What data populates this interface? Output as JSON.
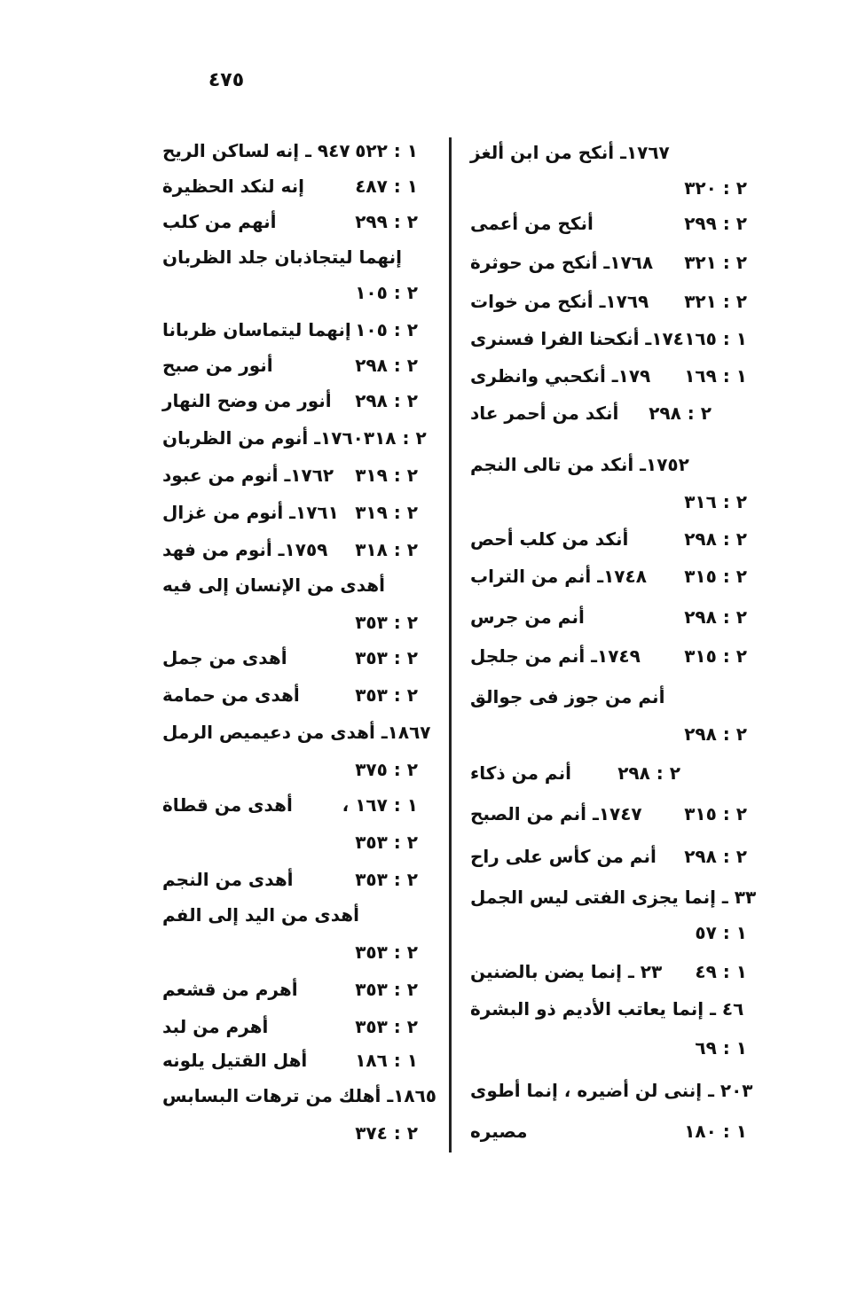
{
  "page_number": "٤٧٥",
  "right_column": [
    {
      "text": "١٧٦٧ـ أنكح من ابن ألغز",
      "ref": ""
    },
    {
      "text": "",
      "ref": "٢ : ٣٢٠"
    },
    {
      "text": "أنكح من أعمى",
      "ref": "٢ : ٢٩٩"
    },
    {
      "text": "١٧٦٨ـ أنكح من حوثرة",
      "ref": "٢ : ٣٢١"
    },
    {
      "text": "١٧٦٩ـ أنكح من خوات",
      "ref": "٢ : ٣٢١"
    },
    {
      "text": "١٧٤ـ أنكحنا الفرا فسنرى",
      "ref": "١ : ١٦٥"
    },
    {
      "text": "١٧٩ـ أنكحبي وانظرى",
      "ref": "١ : ١٦٩"
    },
    {
      "text": "أنكد من أحمر عاد",
      "ref": "٢ : ٢٩٨"
    },
    {
      "text": "١٧٥٢ـ أنكد من تالى النجم",
      "ref": ""
    },
    {
      "text": "",
      "ref": "٢ : ٣١٦"
    },
    {
      "text": "أنكد من كلب أحص",
      "ref": "٢ : ٢٩٨"
    },
    {
      "text": "١٧٤٨ـ أنم من التراب",
      "ref": "٢ : ٣١٥"
    },
    {
      "text": "أنم من جرس",
      "ref": "٢ : ٢٩٨"
    },
    {
      "text": "١٧٤٩ـ أنم من جلجل",
      "ref": "٢ : ٣١٥"
    },
    {
      "text": "أنم من جوز فى جوالق",
      "ref": ""
    },
    {
      "text": "",
      "ref": "٢ : ٢٩٨"
    },
    {
      "text": "أنم من ذكاء",
      "ref": "٢ : ٢٩٨"
    },
    {
      "text": "١٧٤٧ـ أنم من الصبح",
      "ref": "٢ : ٣١٥"
    },
    {
      "text": "أنم من كأس على راح",
      "ref": "٢ : ٢٩٨"
    },
    {
      "text": "٣٣ ـ إنما يجزى الفتى ليس الجمل",
      "ref": ""
    },
    {
      "text": "",
      "ref": "١ : ٥٧"
    },
    {
      "text": "٢٣ ـ إنما يضن بالضنين",
      "ref": "١ : ٤٩"
    },
    {
      "text": "٤٦ ـ إنما يعاتب الأديم ذو البشرة",
      "ref": ""
    },
    {
      "text": "",
      "ref": "١ : ٦٩"
    },
    {
      "text": "٢٠٣ ـ إننى لن أضيره ، إنما أطوى",
      "ref": ""
    },
    {
      "text": "مصيره",
      "ref": "١ : ١٨٠"
    }
  ],
  "left_column": [
    {
      "text": "٩٤٧ ـ إنه لساكن الريح",
      "ref": "١ : ٥٢٢"
    },
    {
      "text": "إنه لنكد الحظيرة",
      "ref": "١ : ٤٨٧"
    },
    {
      "text": "أنهم من كلب",
      "ref": "٢ : ٢٩٩"
    },
    {
      "text": "إنهما ليتجاذبان جلد الظربان",
      "ref": ""
    },
    {
      "text": "",
      "ref": "٢ : ١٠٥"
    },
    {
      "text": "إنهما ليتماسان ظربانا",
      "ref": "٢ : ١٠٥"
    },
    {
      "text": "أنور من صبح",
      "ref": "٢ : ٢٩٨"
    },
    {
      "text": "أنور من وضح النهار",
      "ref": "٢ : ٢٩٨"
    },
    {
      "text": "١٧٦٠ـ أنوم من الظربان",
      "ref": "٢ : ٣١٨"
    },
    {
      "text": "١٧٦٢ـ أنوم من عبود",
      "ref": "٢ : ٣١٩"
    },
    {
      "text": "١٧٦١ـ أنوم من غزال",
      "ref": "٢ : ٣١٩"
    },
    {
      "text": "١٧٥٩ـ أنوم من فهد",
      "ref": "٢ : ٣١٨"
    },
    {
      "text": "أهدى من الإنسان إلى فيه",
      "ref": ""
    },
    {
      "text": "",
      "ref": "٢ : ٣٥٣"
    },
    {
      "text": "أهدى من جمل",
      "ref": "٢ : ٣٥٣"
    },
    {
      "text": "أهدى من حمامة",
      "ref": "٢ : ٣٥٣"
    },
    {
      "text": "١٨٦٧ـ أهدى من دعيميص الرمل",
      "ref": ""
    },
    {
      "text": "",
      "ref": "٢ : ٣٧٥"
    },
    {
      "text": "أهدى من قطاة",
      "ref": "١ : ١٦٧ ،"
    },
    {
      "text": "",
      "ref": "٢ : ٣٥٣"
    },
    {
      "text": "أهدى من النجم",
      "ref": "٢ : ٣٥٣"
    },
    {
      "text": "أهدى من اليد إلى الفم",
      "ref": ""
    },
    {
      "text": "",
      "ref": "٢ : ٣٥٣"
    },
    {
      "text": "أهرم من قشعم",
      "ref": "٢ : ٣٥٣"
    },
    {
      "text": "أهرم من لبد",
      "ref": "٢ : ٣٥٣"
    },
    {
      "text": "أهل القتيل يلونه",
      "ref": "١ : ١٨٦"
    },
    {
      "text": "١٨٦٥ـ أهلك من ترهات البسابس",
      "ref": ""
    },
    {
      "text": "",
      "ref": "٢ : ٣٧٤"
    }
  ]
}
